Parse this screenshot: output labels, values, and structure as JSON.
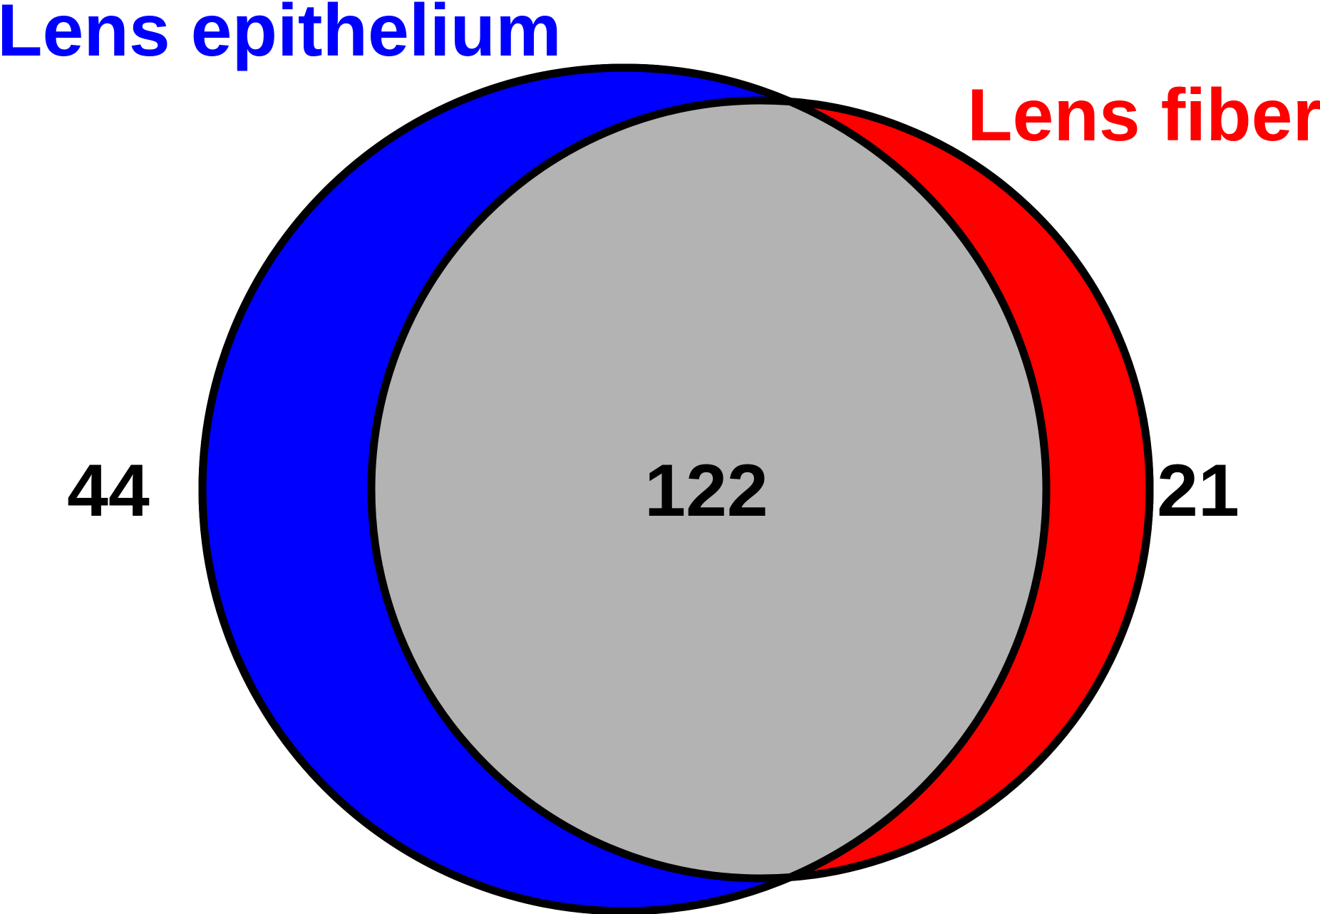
{
  "diagram": {
    "type": "venn",
    "sets": [
      {
        "key": "epithelium",
        "label": "Lens epithelium",
        "color": "#0000ff",
        "unique_count": "44"
      },
      {
        "key": "fiber",
        "label": "Lens fiber",
        "color": "#ff0000",
        "unique_count": "21"
      }
    ],
    "intersection": {
      "count": "122",
      "color": "#b3b3b3"
    },
    "outline_color": "#000000"
  }
}
